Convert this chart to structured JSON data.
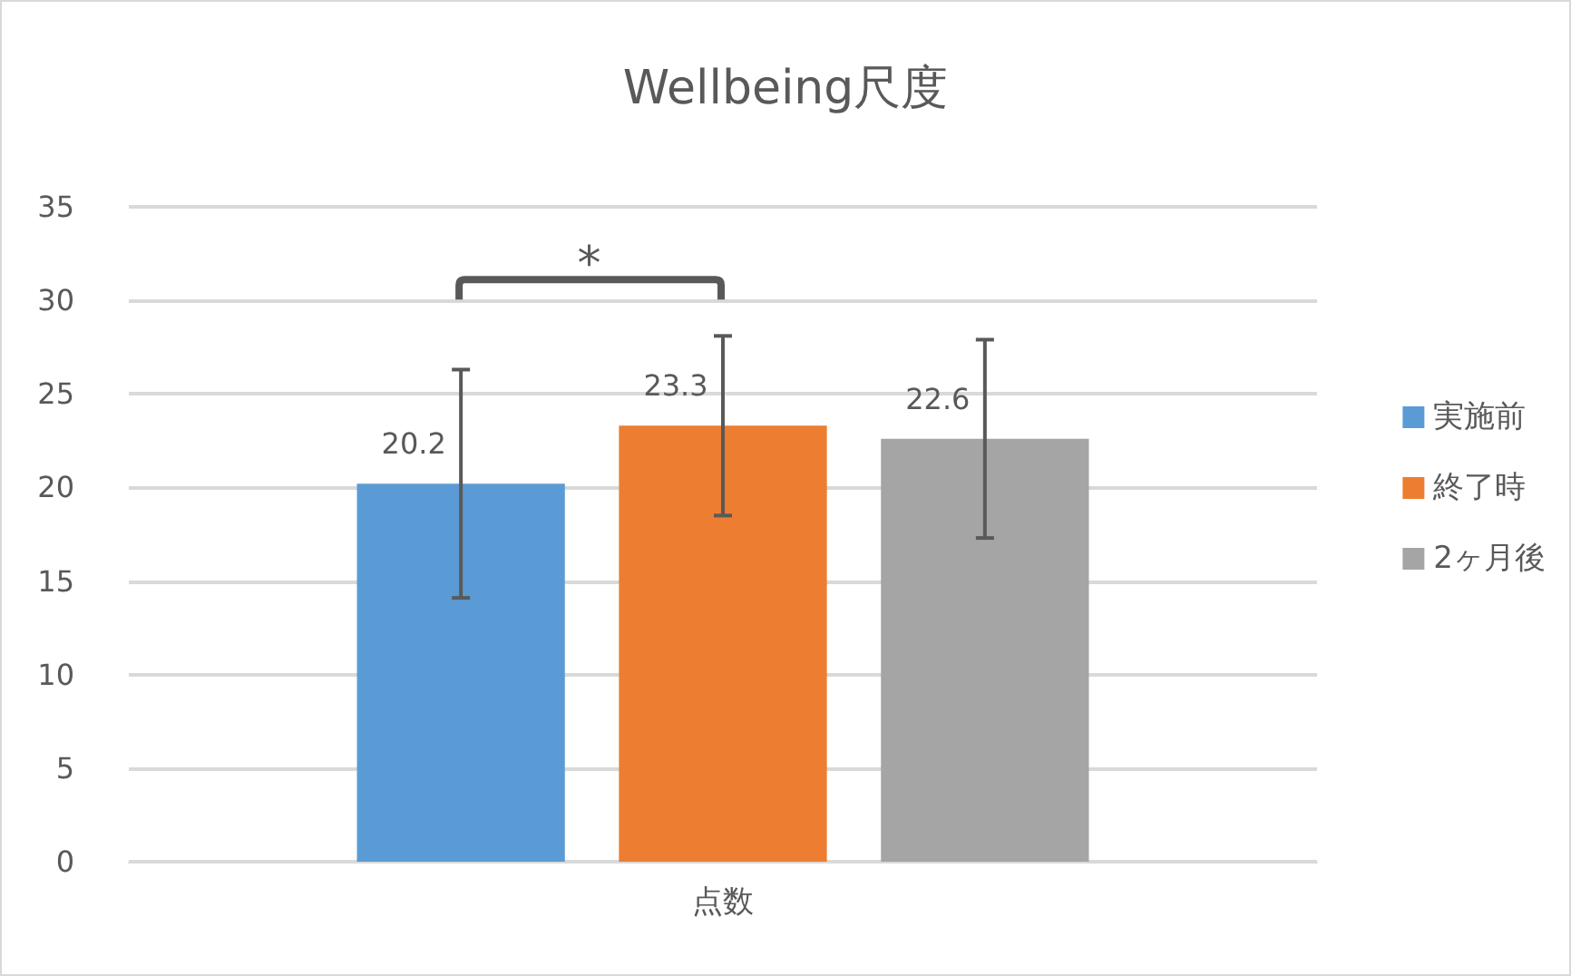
{
  "chart_data": {
    "type": "bar",
    "title": "Wellbeing尺度",
    "categories": [
      "点数"
    ],
    "series": [
      {
        "name": "実施前",
        "color": "#5b9bd5",
        "values": [
          20.2
        ],
        "errors": [
          6.1
        ]
      },
      {
        "name": "終了時",
        "color": "#ed7d31",
        "values": [
          23.3
        ],
        "errors": [
          4.8
        ]
      },
      {
        "name": "2ヶ月後",
        "color": "#a5a5a5",
        "values": [
          22.6
        ],
        "errors": [
          5.3
        ]
      }
    ],
    "ylim": [
      0,
      35
    ],
    "yticks": [
      0,
      5,
      10,
      15,
      20,
      25,
      30,
      35
    ],
    "grid": "y",
    "legend": "right",
    "data_labels": true,
    "annotations": [
      "*"
    ]
  }
}
